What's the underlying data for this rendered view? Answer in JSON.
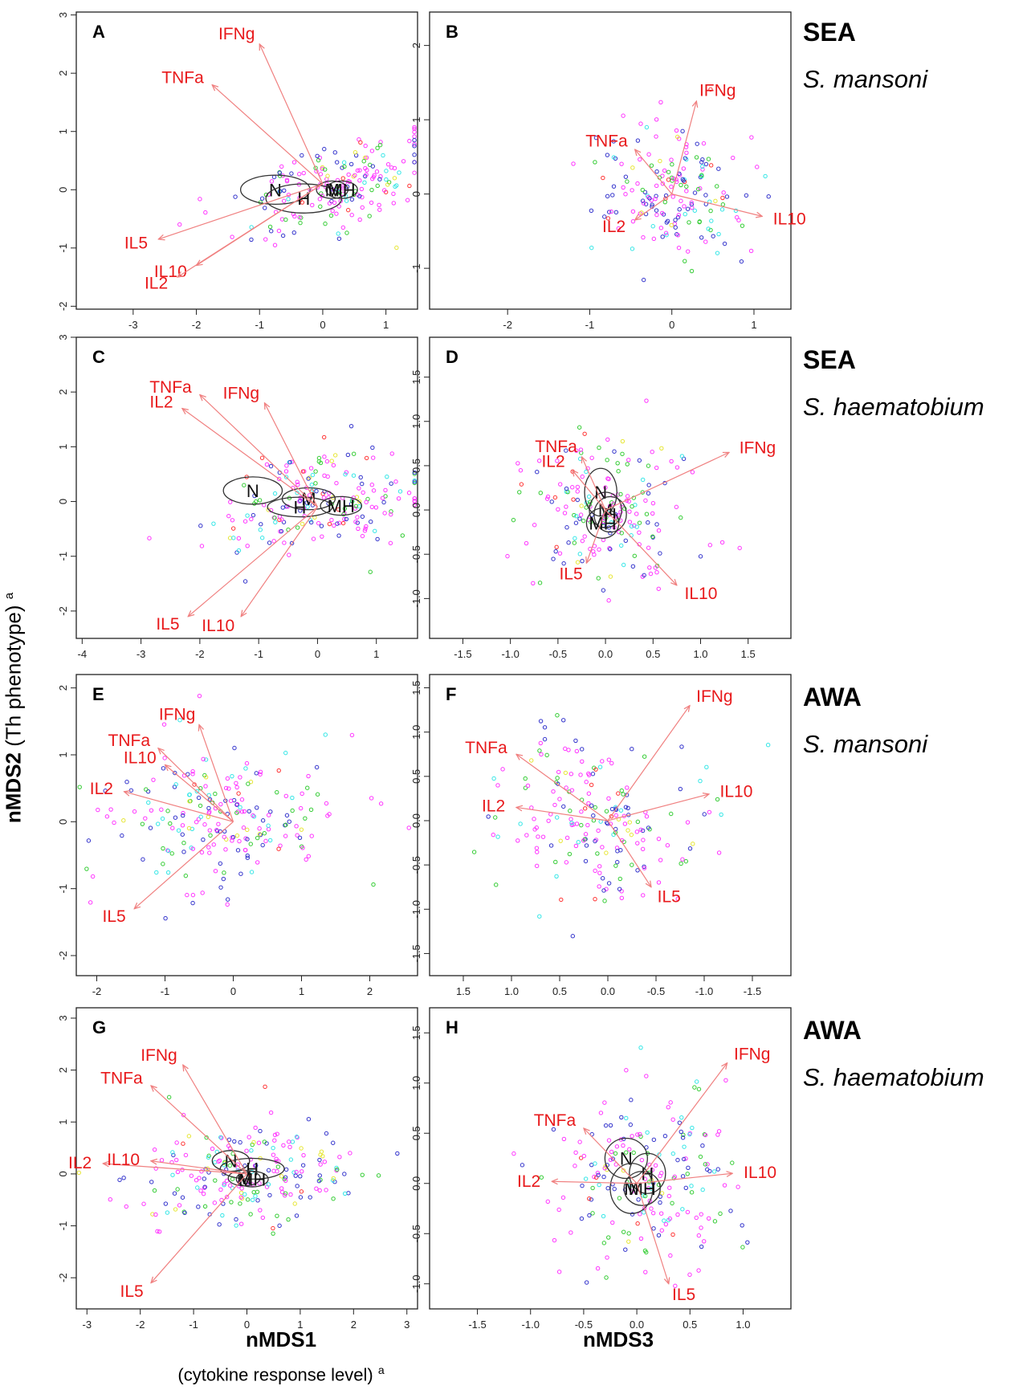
{
  "figure": {
    "y_label_bold": "nMDS2",
    "y_label_rest": " (Th phenotype) ",
    "y_label_sup": "a",
    "x_label_left": "nMDS1",
    "x_label_left_sub": "(cytokine response level) ",
    "x_label_left_sub_sup": "a",
    "x_label_right": "nMDS3"
  },
  "rows": [
    {
      "stimulus": "SEA",
      "species": "S. mansoni"
    },
    {
      "stimulus": "SEA",
      "species": "S. haematobium"
    },
    {
      "stimulus": "AWA",
      "species": "S. mansoni"
    },
    {
      "stimulus": "AWA",
      "species": "S. haematobium"
    }
  ],
  "colors": {
    "vector": "#f08080",
    "vector_label": "#e8191b",
    "points": [
      "#ff33ff",
      "#3333cc",
      "#33cc33",
      "#33e6e6",
      "#e6e633",
      "#ff3333"
    ]
  },
  "chart_data": [
    {
      "panel": "A",
      "type": "scatter",
      "x_axis": "nMDS1",
      "y_axis": "nMDS2",
      "xlim": [
        -3.9,
        1.5
      ],
      "ylim": [
        -2.05,
        3.05
      ],
      "xticks": [
        "-3",
        "-2",
        "-1",
        "0",
        "1"
      ],
      "xtick_values": [
        -3,
        -2,
        -1,
        0,
        1
      ],
      "yticks": [
        "-2",
        "-1",
        "0",
        "1",
        "2",
        "3"
      ],
      "ytick_values": [
        -2,
        -1,
        0,
        1,
        2,
        3
      ],
      "points": {
        "n": 190,
        "cx": 0.2,
        "cy": 0.0,
        "sx": 0.75,
        "sy": 0.45,
        "rho": 0.55
      },
      "vectors": [
        {
          "label": "IFNg",
          "x": -1.0,
          "y": 2.5
        },
        {
          "label": "TNFa",
          "x": -1.75,
          "y": 1.8
        },
        {
          "label": "IL5",
          "x": -2.6,
          "y": -0.85
        },
        {
          "label": "IL10",
          "x": -2.0,
          "y": -1.3
        },
        {
          "label": "IL2",
          "x": -2.3,
          "y": -1.5
        }
      ],
      "vector_origin": [
        0.0,
        0.1
      ],
      "groups": [
        {
          "label": "N",
          "x": -0.75,
          "y": 0.0,
          "rx": 0.55,
          "ry": 0.25
        },
        {
          "label": "H",
          "x": -0.3,
          "y": -0.15,
          "rx": 0.6,
          "ry": 0.25
        },
        {
          "label": "M",
          "x": 0.15,
          "y": 0.0,
          "rx": 0.25,
          "ry": 0.15
        },
        {
          "label": "MH",
          "x": 0.3,
          "y": 0.0,
          "rx": 0.25,
          "ry": 0.15
        }
      ]
    },
    {
      "panel": "B",
      "type": "scatter",
      "x_axis": "nMDS3",
      "y_axis": "nMDS2",
      "xlim": [
        -2.95,
        1.45
      ],
      "ylim": [
        -1.55,
        2.45
      ],
      "xticks": [
        "-2",
        "-1",
        "0",
        "1"
      ],
      "xtick_values": [
        -2,
        -1,
        0,
        1
      ],
      "yticks": [
        "-1",
        "0",
        "1",
        "2"
      ],
      "ytick_values": [
        -1,
        0,
        1,
        2
      ],
      "points": {
        "n": 185,
        "cx": 0.0,
        "cy": 0.0,
        "sx": 0.45,
        "sy": 0.45,
        "rho": 0.0
      },
      "vectors": [
        {
          "label": "IFNg",
          "x": 0.3,
          "y": 1.25
        },
        {
          "label": "TNFa",
          "x": -0.45,
          "y": 0.6
        },
        {
          "label": "IL2",
          "x": -0.45,
          "y": -0.35
        },
        {
          "label": "IL10",
          "x": 1.1,
          "y": -0.3
        }
      ],
      "vector_origin": [
        0.0,
        0.0
      ],
      "groups": []
    },
    {
      "panel": "C",
      "type": "scatter",
      "x_axis": "nMDS1",
      "y_axis": "nMDS2",
      "xlim": [
        -4.1,
        1.7
      ],
      "ylim": [
        -2.5,
        3.0
      ],
      "xticks": [
        "-4",
        "-3",
        "-2",
        "-1",
        "0",
        "1"
      ],
      "xtick_values": [
        -4,
        -3,
        -2,
        -1,
        0,
        1
      ],
      "yticks": [
        "-2",
        "-1",
        "0",
        "1",
        "2",
        "3"
      ],
      "ytick_values": [
        -2,
        -1,
        0,
        1,
        2,
        3
      ],
      "points": {
        "n": 200,
        "cx": 0.0,
        "cy": 0.0,
        "sx": 0.9,
        "sy": 0.45,
        "rho": 0.2
      },
      "vectors": [
        {
          "label": "TNFa",
          "x": -2.0,
          "y": 1.95
        },
        {
          "label": "IL2",
          "x": -2.3,
          "y": 1.7
        },
        {
          "label": "IFNg",
          "x": -0.9,
          "y": 1.8
        },
        {
          "label": "IL5",
          "x": -2.2,
          "y": -2.1
        },
        {
          "label": "IL10",
          "x": -1.3,
          "y": -2.1
        }
      ],
      "vector_origin": [
        0.0,
        -0.1
      ],
      "groups": [
        {
          "label": "N",
          "x": -1.1,
          "y": 0.2,
          "rx": 0.5,
          "ry": 0.25
        },
        {
          "label": "M",
          "x": -0.15,
          "y": 0.05,
          "rx": 0.45,
          "ry": 0.2
        },
        {
          "label": "H",
          "x": -0.3,
          "y": -0.1,
          "rx": 0.55,
          "ry": 0.18
        },
        {
          "label": "MH",
          "x": 0.4,
          "y": -0.08,
          "rx": 0.35,
          "ry": 0.17
        }
      ]
    },
    {
      "panel": "D",
      "type": "scatter",
      "x_axis": "nMDS3",
      "y_axis": "nMDS2",
      "xlim": [
        -1.85,
        1.95
      ],
      "ylim": [
        -1.45,
        1.95
      ],
      "xticks": [
        "-1.5",
        "-1.0",
        "-0.5",
        "0.0",
        "0.5",
        "1.0",
        "1.5"
      ],
      "xtick_values": [
        -1.5,
        -1.0,
        -0.5,
        0.0,
        0.5,
        1.0,
        1.5
      ],
      "yticks": [
        "-1.0",
        "-0.5",
        "0.0",
        "0.5",
        "1.0",
        "1.5"
      ],
      "ytick_values": [
        -1.0,
        -0.5,
        0.0,
        0.5,
        1.0,
        1.5
      ],
      "points": {
        "n": 190,
        "cx": 0.0,
        "cy": 0.0,
        "sx": 0.42,
        "sy": 0.42,
        "rho": 0.0
      },
      "vectors": [
        {
          "label": "IFNg",
          "x": 1.3,
          "y": 0.65
        },
        {
          "label": "TNFa",
          "x": -0.25,
          "y": 0.6
        },
        {
          "label": "IL2",
          "x": -0.35,
          "y": 0.45
        },
        {
          "label": "IL5",
          "x": -0.2,
          "y": -0.6
        },
        {
          "label": "IL10",
          "x": 0.75,
          "y": -0.85
        }
      ],
      "vector_origin": [
        0.0,
        0.0
      ],
      "groups": [
        {
          "label": "N",
          "x": -0.05,
          "y": 0.2,
          "rx": 0.17,
          "ry": 0.27
        },
        {
          "label": "M",
          "x": 0.0,
          "y": 0.0,
          "rx": 0.17,
          "ry": 0.2
        },
        {
          "label": "H",
          "x": 0.05,
          "y": -0.05,
          "rx": 0.17,
          "ry": 0.2
        },
        {
          "label": "MH",
          "x": -0.03,
          "y": -0.15,
          "rx": 0.17,
          "ry": 0.17
        }
      ]
    },
    {
      "panel": "E",
      "type": "scatter",
      "x_axis": "nMDS1",
      "y_axis": "nMDS2",
      "xlim": [
        -2.3,
        2.7
      ],
      "ylim": [
        -2.3,
        2.2
      ],
      "xticks": [
        "-2",
        "-1",
        "0",
        "1",
        "2"
      ],
      "xtick_values": [
        -2,
        -1,
        0,
        1,
        2
      ],
      "yticks": [
        "-2",
        "-1",
        "0",
        "1",
        "2"
      ],
      "ytick_values": [
        -2,
        -1,
        0,
        1,
        2
      ],
      "points": {
        "n": 220,
        "cx": -0.2,
        "cy": 0.0,
        "sx": 0.9,
        "sy": 0.55,
        "rho": 0.0
      },
      "vectors": [
        {
          "label": "IFNg",
          "x": -0.5,
          "y": 1.45
        },
        {
          "label": "TNFa",
          "x": -1.1,
          "y": 1.1
        },
        {
          "label": "IL10",
          "x": -1.0,
          "y": 0.85
        },
        {
          "label": "IL2",
          "x": -1.6,
          "y": 0.45
        },
        {
          "label": "IL5",
          "x": -1.45,
          "y": -1.3
        }
      ],
      "vector_origin": [
        0.0,
        0.0
      ],
      "groups": []
    },
    {
      "panel": "F",
      "type": "scatter",
      "x_axis": "nMDS3",
      "y_axis": "nMDS2",
      "xlim": [
        1.85,
        -1.9
      ],
      "ylim": [
        -1.75,
        1.65
      ],
      "xticks": [
        "1.5",
        "1.0",
        "0.5",
        "0.0",
        "-0.5",
        "-1.0",
        "-1.5"
      ],
      "xtick_values": [
        1.5,
        1.0,
        0.5,
        0.0,
        -0.5,
        -1.0,
        -1.5
      ],
      "yticks": [
        "-1.5",
        "-1.0",
        "-0.5",
        "0.0",
        "0.5",
        "1.0",
        "1.5"
      ],
      "ytick_values": [
        -1.5,
        -1.0,
        -0.5,
        0.0,
        0.5,
        1.0,
        1.5
      ],
      "points": {
        "n": 200,
        "cx": 0.1,
        "cy": 0.0,
        "sx": 0.5,
        "sy": 0.5,
        "rho": 0.0
      },
      "vectors": [
        {
          "label": "IFNg",
          "x": -0.85,
          "y": 1.3
        },
        {
          "label": "TNFa",
          "x": 0.95,
          "y": 0.75
        },
        {
          "label": "IL10",
          "x": -1.05,
          "y": 0.3
        },
        {
          "label": "IL2",
          "x": 0.95,
          "y": 0.15
        },
        {
          "label": "IL5",
          "x": -0.45,
          "y": -0.75
        }
      ],
      "vector_origin": [
        0.0,
        0.0
      ],
      "groups": []
    },
    {
      "panel": "G",
      "type": "scatter",
      "x_axis": "nMDS1",
      "y_axis": "nMDS2",
      "xlim": [
        -3.2,
        3.2
      ],
      "ylim": [
        -2.6,
        3.2
      ],
      "xticks": [
        "-3",
        "-2",
        "-1",
        "0",
        "1",
        "2",
        "3"
      ],
      "xtick_values": [
        -3,
        -2,
        -1,
        0,
        1,
        2,
        3
      ],
      "yticks": [
        "-2",
        "-1",
        "0",
        "1",
        "2",
        "3"
      ],
      "ytick_values": [
        -2,
        -1,
        0,
        1,
        2,
        3
      ],
      "points": {
        "n": 220,
        "cx": 0.0,
        "cy": 0.0,
        "sx": 1.0,
        "sy": 0.5,
        "rho": 0.0
      },
      "vectors": [
        {
          "label": "IFNg",
          "x": -1.2,
          "y": 2.1
        },
        {
          "label": "TNFa",
          "x": -1.8,
          "y": 1.7
        },
        {
          "label": "IL2",
          "x": -2.7,
          "y": 0.2
        },
        {
          "label": "IL10",
          "x": -1.8,
          "y": 0.25
        },
        {
          "label": "IL5",
          "x": -1.8,
          "y": -2.1
        }
      ],
      "vector_origin": [
        0.0,
        0.0
      ],
      "groups": [
        {
          "label": "N",
          "x": -0.3,
          "y": 0.25,
          "rx": 0.35,
          "ry": 0.2
        },
        {
          "label": "H",
          "x": 0.1,
          "y": 0.1,
          "rx": 0.6,
          "ry": 0.2
        },
        {
          "label": "M",
          "x": -0.05,
          "y": -0.08,
          "rx": 0.3,
          "ry": 0.15
        },
        {
          "label": "MH",
          "x": 0.1,
          "y": -0.1,
          "rx": 0.3,
          "ry": 0.15
        }
      ]
    },
    {
      "panel": "H",
      "type": "scatter",
      "x_axis": "nMDS3",
      "y_axis": "nMDS2",
      "xlim": [
        -1.95,
        1.45
      ],
      "ylim": [
        -1.25,
        1.75
      ],
      "xticks": [
        "-1.5",
        "-1.0",
        "-0.5",
        "0.0",
        "0.5",
        "1.0"
      ],
      "xtick_values": [
        -1.5,
        -1.0,
        -0.5,
        0.0,
        0.5,
        1.0
      ],
      "yticks": [
        "-1.0",
        "-0.5",
        "0.0",
        "0.5",
        "1.0",
        "1.5"
      ],
      "ytick_values": [
        -1.0,
        -0.5,
        0.0,
        0.5,
        1.0,
        1.5
      ],
      "points": {
        "n": 200,
        "cx": 0.0,
        "cy": 0.0,
        "sx": 0.45,
        "sy": 0.45,
        "rho": 0.0
      },
      "vectors": [
        {
          "label": "IFNg",
          "x": 0.85,
          "y": 1.2
        },
        {
          "label": "TNFa",
          "x": -0.5,
          "y": 0.55
        },
        {
          "label": "IL2",
          "x": -0.8,
          "y": 0.02
        },
        {
          "label": "IL10",
          "x": 0.9,
          "y": 0.1
        },
        {
          "label": "IL5",
          "x": 0.3,
          "y": -1.0
        }
      ],
      "vector_origin": [
        0.0,
        0.0
      ],
      "groups": [
        {
          "label": "N",
          "x": -0.1,
          "y": 0.25,
          "rx": 0.2,
          "ry": 0.2
        },
        {
          "label": "H",
          "x": 0.1,
          "y": 0.1,
          "rx": 0.17,
          "ry": 0.2
        },
        {
          "label": "M",
          "x": -0.05,
          "y": -0.05,
          "rx": 0.2,
          "ry": 0.25
        },
        {
          "label": "MH",
          "x": 0.05,
          "y": -0.05,
          "rx": 0.17,
          "ry": 0.17
        }
      ]
    }
  ]
}
